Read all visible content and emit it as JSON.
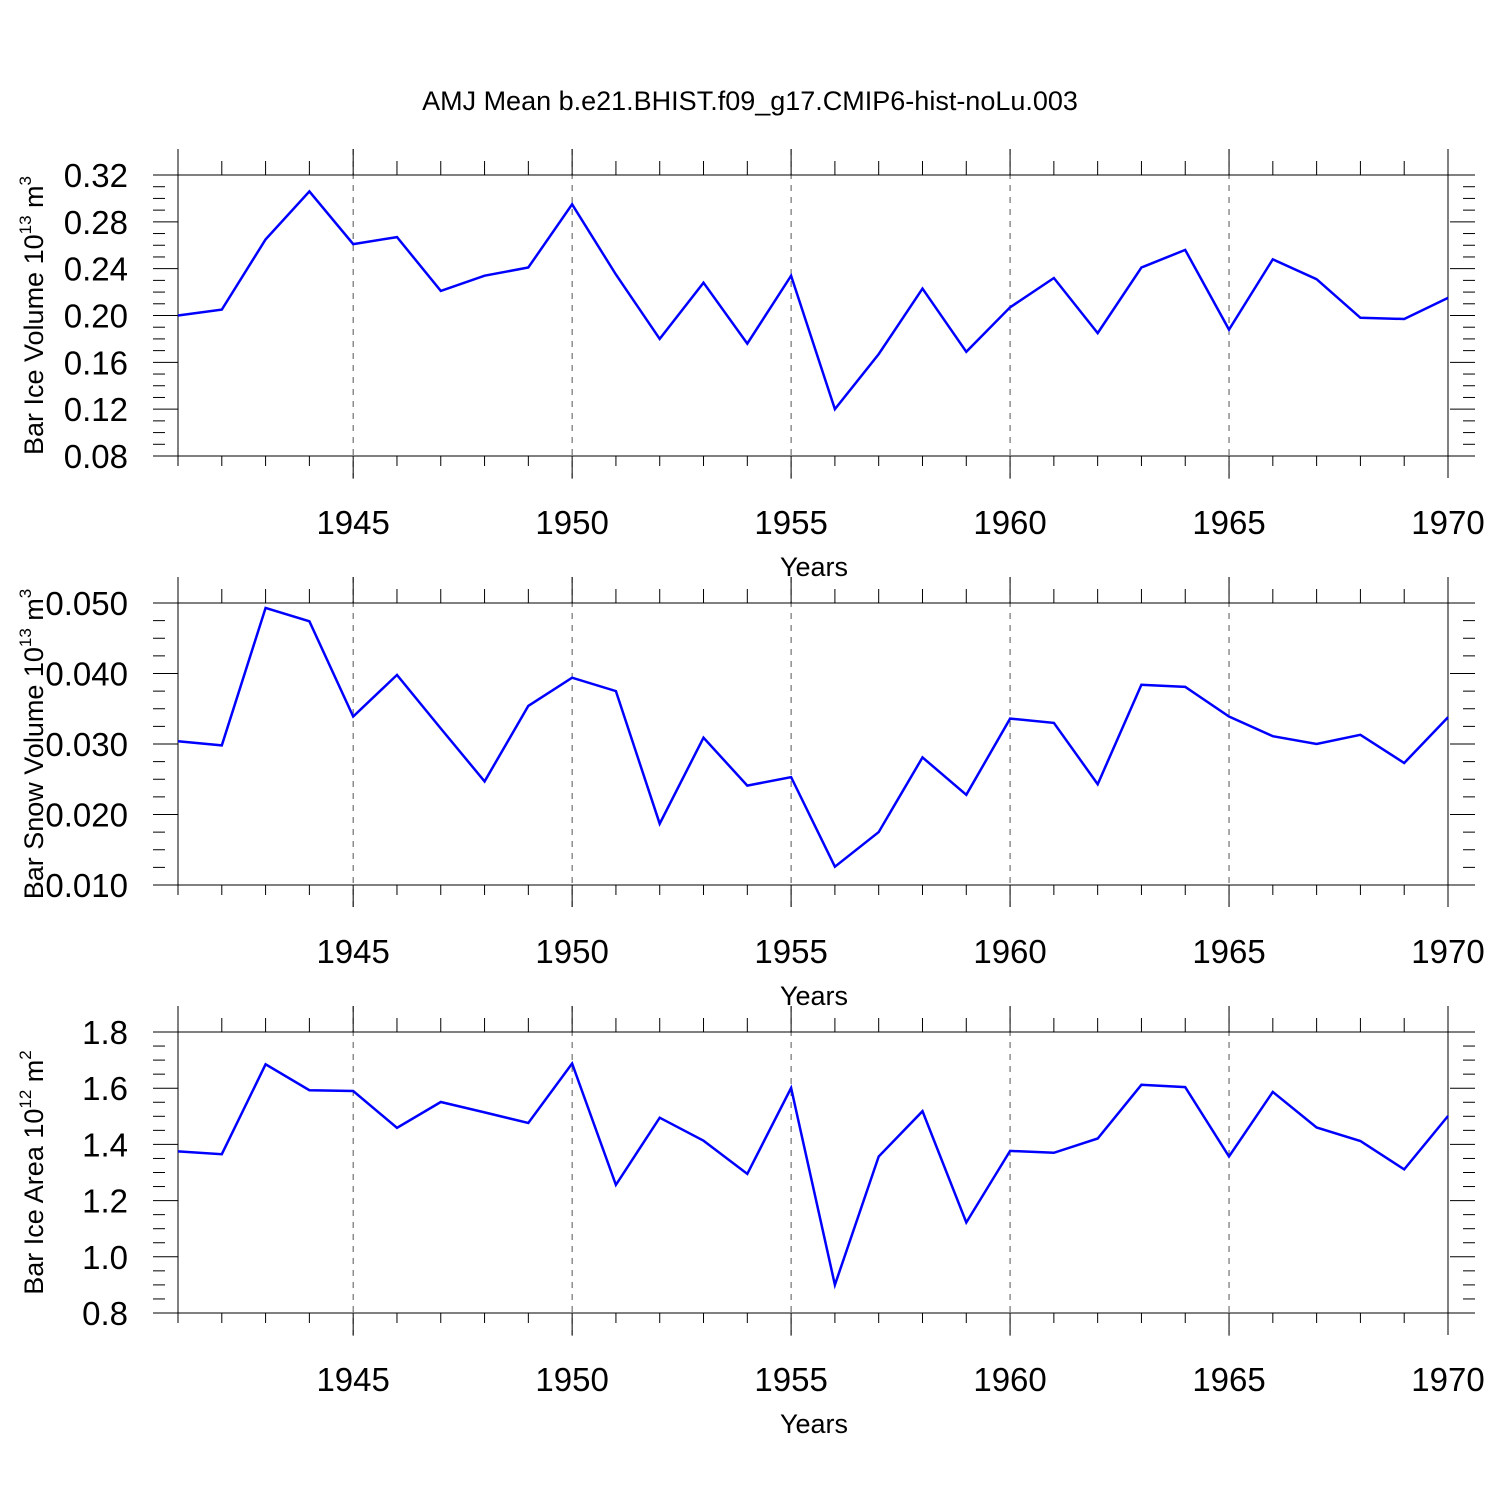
{
  "title": "AMJ Mean b.e21.BHIST.f09_g17.CMIP6-hist-noLu.003",
  "colors": {
    "line": "#0000ff",
    "axis": "#000000",
    "grid": "#555555"
  },
  "chart_data": [
    {
      "type": "line",
      "ylabel_main": "Bar Ice Volume 10",
      "ylabel_sup": "13",
      "ylabel_unit": " m",
      "ylabel_unit_sup": "3",
      "xlabel": "Years",
      "xlim": [
        1941,
        1970
      ],
      "ylim": [
        0.08,
        0.32
      ],
      "yticks": [
        "0.08",
        "0.12",
        "0.16",
        "0.20",
        "0.24",
        "0.28",
        "0.32"
      ],
      "ytick_values": [
        0.08,
        0.12,
        0.16,
        0.2,
        0.24,
        0.28,
        0.32
      ],
      "xticks": [
        "1945",
        "1950",
        "1955",
        "1960",
        "1965",
        "1970"
      ],
      "xtick_values": [
        1945,
        1950,
        1955,
        1960,
        1965,
        1970
      ],
      "grid_x": [
        1945,
        1950,
        1955,
        1960,
        1965
      ],
      "x": [
        1941,
        1942,
        1943,
        1944,
        1945,
        1946,
        1947,
        1948,
        1949,
        1950,
        1951,
        1952,
        1953,
        1954,
        1955,
        1956,
        1957,
        1958,
        1959,
        1960,
        1961,
        1962,
        1963,
        1964,
        1965,
        1966,
        1967,
        1968,
        1969,
        1970
      ],
      "values": [
        0.2,
        0.205,
        0.265,
        0.306,
        0.261,
        0.267,
        0.221,
        0.234,
        0.241,
        0.295,
        0.235,
        0.18,
        0.228,
        0.176,
        0.234,
        0.12,
        0.167,
        0.223,
        0.169,
        0.207,
        0.232,
        0.185,
        0.241,
        0.256,
        0.188,
        0.248,
        0.231,
        0.198,
        0.197,
        0.215
      ]
    },
    {
      "type": "line",
      "ylabel_main": "Bar Snow Volume 10",
      "ylabel_sup": "13",
      "ylabel_unit": " m",
      "ylabel_unit_sup": "3",
      "xlabel": "Years",
      "xlim": [
        1941,
        1970
      ],
      "ylim": [
        0.01,
        0.05
      ],
      "yticks": [
        "0.010",
        "0.020",
        "0.030",
        "0.040",
        "0.050"
      ],
      "ytick_values": [
        0.01,
        0.02,
        0.03,
        0.04,
        0.05
      ],
      "xticks": [
        "1945",
        "1950",
        "1955",
        "1960",
        "1965",
        "1970"
      ],
      "xtick_values": [
        1945,
        1950,
        1955,
        1960,
        1965,
        1970
      ],
      "grid_x": [
        1945,
        1950,
        1955,
        1960,
        1965
      ],
      "x": [
        1941,
        1942,
        1943,
        1944,
        1945,
        1946,
        1947,
        1948,
        1949,
        1950,
        1951,
        1952,
        1953,
        1954,
        1955,
        1956,
        1957,
        1958,
        1959,
        1960,
        1961,
        1962,
        1963,
        1964,
        1965,
        1966,
        1967,
        1968,
        1969,
        1970
      ],
      "values": [
        0.0304,
        0.0298,
        0.0493,
        0.0474,
        0.0339,
        0.0398,
        0.0322,
        0.0247,
        0.0354,
        0.0394,
        0.0375,
        0.0187,
        0.0309,
        0.0241,
        0.0253,
        0.0126,
        0.0175,
        0.0281,
        0.0228,
        0.0336,
        0.033,
        0.0243,
        0.0384,
        0.0381,
        0.0339,
        0.0311,
        0.03,
        0.0313,
        0.0273,
        0.0338
      ]
    },
    {
      "type": "line",
      "ylabel_main": "Bar Ice Area 10",
      "ylabel_sup": "12",
      "ylabel_unit": " m",
      "ylabel_unit_sup": "2",
      "xlabel": "Years",
      "xlim": [
        1941,
        1970
      ],
      "ylim": [
        0.8,
        1.8
      ],
      "yticks": [
        "0.8",
        "1.0",
        "1.2",
        "1.4",
        "1.6",
        "1.8"
      ],
      "ytick_values": [
        0.8,
        1.0,
        1.2,
        1.4,
        1.6,
        1.8
      ],
      "xticks": [
        "1945",
        "1950",
        "1955",
        "1960",
        "1965",
        "1970"
      ],
      "xtick_values": [
        1945,
        1950,
        1955,
        1960,
        1965,
        1970
      ],
      "grid_x": [
        1945,
        1950,
        1955,
        1960,
        1965
      ],
      "x": [
        1941,
        1942,
        1943,
        1944,
        1945,
        1946,
        1947,
        1948,
        1949,
        1950,
        1951,
        1952,
        1953,
        1954,
        1955,
        1956,
        1957,
        1958,
        1959,
        1960,
        1961,
        1962,
        1963,
        1964,
        1965,
        1966,
        1967,
        1968,
        1969,
        1970
      ],
      "values": [
        1.375,
        1.365,
        1.685,
        1.593,
        1.59,
        1.459,
        1.551,
        1.514,
        1.476,
        1.688,
        1.256,
        1.495,
        1.413,
        1.295,
        1.601,
        0.9,
        1.357,
        1.518,
        1.122,
        1.377,
        1.37,
        1.421,
        1.612,
        1.604,
        1.357,
        1.587,
        1.46,
        1.412,
        1.311,
        1.501
      ]
    }
  ]
}
